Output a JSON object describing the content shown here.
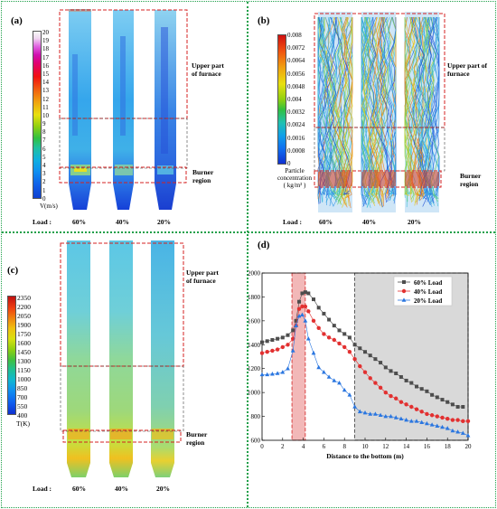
{
  "panels": {
    "a": {
      "label": "(a)",
      "colorbar_ticks": [
        "20",
        "19",
        "18",
        "17",
        "16",
        "15",
        "14",
        "13",
        "12",
        "11",
        "10",
        "9",
        "8",
        "7",
        "6",
        "5",
        "4",
        "3",
        "2",
        "1",
        "0"
      ],
      "colorbar_unit": "V(m/s)",
      "upper_label": [
        "Upper part",
        "of furnace"
      ],
      "burner_label": [
        "Burner",
        "region"
      ],
      "load_title": "Load :",
      "loads": [
        "60%",
        "40%",
        "20%"
      ]
    },
    "b": {
      "label": "(b)",
      "colorbar_ticks": [
        "0.008",
        "0.0072",
        "0.0064",
        "0.0056",
        "0.0048",
        "0.004",
        "0.0032",
        "0.0024",
        "0.0016",
        "0.0008",
        "0"
      ],
      "colorbar_unit": [
        "Particle",
        "concentration",
        "( kg/m³ )"
      ],
      "upper_label": [
        "Upper part of",
        "furnace"
      ],
      "burner_label": [
        "Burner",
        "region"
      ],
      "load_title": "Load :",
      "loads": [
        "60%",
        "40%",
        "20%"
      ]
    },
    "c": {
      "label": "(c)",
      "colorbar_ticks": [
        "2350",
        "2200",
        "2050",
        "1900",
        "1750",
        "1600",
        "1450",
        "1300",
        "1150",
        "1000",
        "850",
        "700",
        "550",
        "400"
      ],
      "colorbar_unit": "T(K)",
      "upper_label": [
        "Upper part",
        "of furnace"
      ],
      "burner_label": [
        "Burner",
        "region"
      ],
      "load_title": "Load :",
      "loads": [
        "60%",
        "40%",
        "20%"
      ]
    },
    "d": {
      "label": "(d)"
    }
  },
  "colors": {
    "separator": "#1fa04a",
    "dash_red": "#d42020",
    "series_60": "#4d4d4d",
    "series_40": "#e23030",
    "series_20": "#2a76e0"
  },
  "chart_data": {
    "type": "line",
    "xlabel": "Distance to the bottom (m)",
    "ylabel": "T(K)",
    "xlim": [
      0,
      20
    ],
    "ylim": [
      600,
      2000
    ],
    "xticks": [
      0,
      2,
      4,
      6,
      8,
      10,
      12,
      14,
      16,
      18,
      20
    ],
    "yticks": [
      600,
      800,
      1000,
      1200,
      1400,
      1600,
      1800,
      2000
    ],
    "legend_position": "top-right",
    "shaded_regions": [
      {
        "name": "burner",
        "x": [
          2.9,
          4.2
        ],
        "color": "#f2b8b8"
      },
      {
        "name": "upper",
        "x": [
          9,
          20
        ],
        "color": "#d9d9d9"
      }
    ],
    "series": [
      {
        "name": "60%  Load",
        "marker": "square",
        "color": "#4d4d4d",
        "x": [
          0,
          0.5,
          1,
          1.5,
          2,
          2.5,
          3,
          3.3,
          3.6,
          3.9,
          4.2,
          4.5,
          5,
          5.5,
          6,
          6.5,
          7,
          7.5,
          8,
          8.5,
          9,
          9.5,
          10,
          10.5,
          11,
          11.5,
          12,
          12.5,
          13,
          13.5,
          14,
          14.5,
          15,
          15.5,
          16,
          16.5,
          17,
          17.5,
          18,
          18.5,
          19,
          19.5
        ],
        "y": [
          1420,
          1430,
          1440,
          1450,
          1460,
          1480,
          1520,
          1600,
          1760,
          1830,
          1840,
          1830,
          1780,
          1710,
          1660,
          1610,
          1560,
          1520,
          1490,
          1460,
          1400,
          1370,
          1340,
          1310,
          1280,
          1250,
          1210,
          1180,
          1160,
          1130,
          1100,
          1080,
          1050,
          1030,
          1010,
          980,
          960,
          940,
          920,
          900,
          880,
          880
        ]
      },
      {
        "name": "40%  Load",
        "marker": "circle",
        "color": "#e23030",
        "x": [
          0,
          0.5,
          1,
          1.5,
          2,
          2.5,
          3,
          3.3,
          3.6,
          3.9,
          4.2,
          4.5,
          5,
          5.5,
          6,
          6.5,
          7,
          7.5,
          8,
          8.5,
          9,
          9.5,
          10,
          10.5,
          11,
          11.5,
          12,
          12.5,
          13,
          13.5,
          14,
          14.5,
          15,
          15.5,
          16,
          16.5,
          17,
          17.5,
          18,
          18.5,
          19,
          19.5,
          20
        ],
        "y": [
          1330,
          1340,
          1350,
          1360,
          1380,
          1400,
          1450,
          1560,
          1700,
          1720,
          1720,
          1680,
          1600,
          1540,
          1490,
          1460,
          1440,
          1410,
          1380,
          1340,
          1280,
          1220,
          1170,
          1120,
          1080,
          1040,
          1000,
          970,
          950,
          920,
          900,
          880,
          860,
          840,
          820,
          810,
          800,
          790,
          780,
          770,
          770,
          760,
          760
        ]
      },
      {
        "name": "20%  Load",
        "marker": "triangle",
        "color": "#2a76e0",
        "x": [
          0,
          0.5,
          1,
          1.5,
          2,
          2.5,
          3,
          3.3,
          3.6,
          3.9,
          4.2,
          4.5,
          5,
          5.5,
          6,
          6.5,
          7,
          7.5,
          8,
          8.5,
          9,
          9.5,
          10,
          10.5,
          11,
          11.5,
          12,
          12.5,
          13,
          13.5,
          14,
          14.5,
          15,
          15.5,
          16,
          16.5,
          17,
          17.5,
          18,
          18.5,
          19,
          19.5,
          20
        ],
        "y": [
          1150,
          1150,
          1155,
          1160,
          1170,
          1200,
          1350,
          1560,
          1640,
          1650,
          1600,
          1450,
          1330,
          1210,
          1170,
          1130,
          1100,
          1080,
          1020,
          980,
          880,
          840,
          830,
          820,
          820,
          810,
          800,
          800,
          790,
          780,
          770,
          760,
          760,
          750,
          740,
          730,
          720,
          710,
          700,
          680,
          670,
          660,
          640
        ]
      }
    ]
  }
}
